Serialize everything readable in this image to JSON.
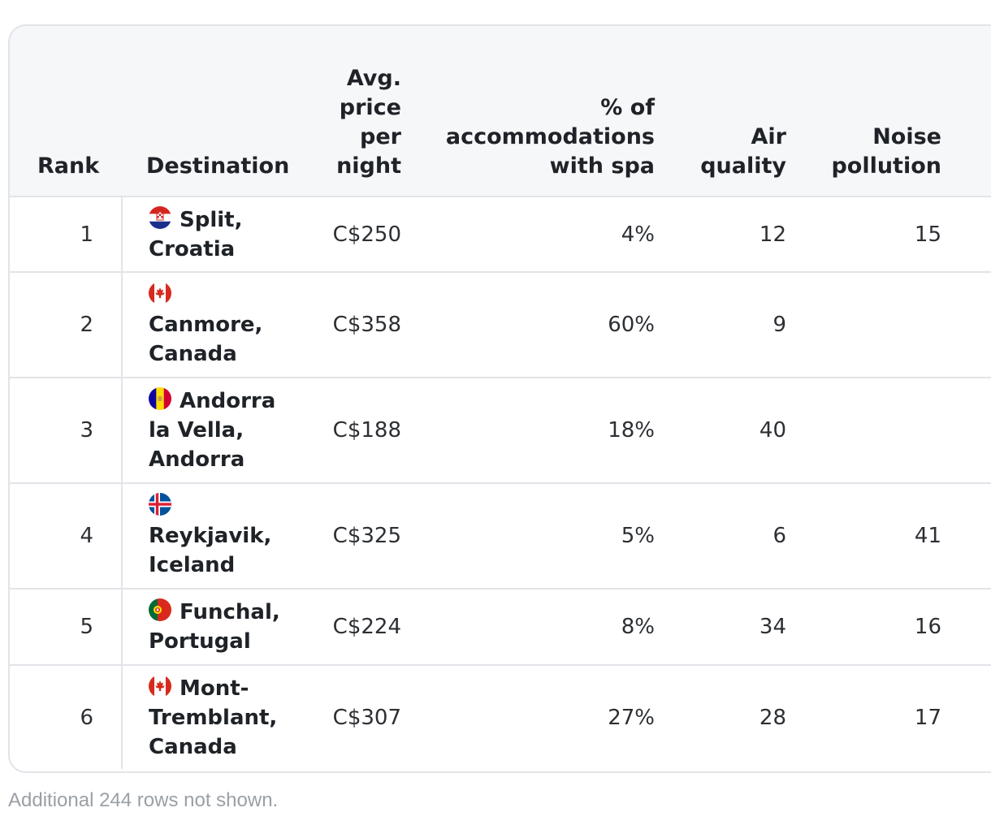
{
  "table": {
    "headers": {
      "rank": "Rank",
      "destination": "Destination",
      "price": [
        "Avg.",
        "price",
        "per",
        "night"
      ],
      "spa": [
        "% of",
        "accommodations",
        "with spa"
      ],
      "air": [
        "Air",
        "quality"
      ],
      "noise": [
        "Noise",
        "pollution"
      ]
    },
    "rows": [
      {
        "rank": "1",
        "flag": "croatia-flag-icon",
        "name": [
          "Split,",
          "Croatia"
        ],
        "price": "C$250",
        "spa": "4%",
        "air": "12",
        "noise": "15"
      },
      {
        "rank": "2",
        "flag": "canada-flag-icon",
        "name": [
          "",
          "Canmore,",
          "Canada"
        ],
        "price": "C$358",
        "spa": "60%",
        "air": "9",
        "noise": ""
      },
      {
        "rank": "3",
        "flag": "andorra-flag-icon",
        "name": [
          "Andorra",
          "la Vella,",
          "Andorra"
        ],
        "price": "C$188",
        "spa": "18%",
        "air": "40",
        "noise": ""
      },
      {
        "rank": "4",
        "flag": "iceland-flag-icon",
        "name": [
          "",
          "Reykjavik,",
          "Iceland"
        ],
        "price": "C$325",
        "spa": "5%",
        "air": "6",
        "noise": "41"
      },
      {
        "rank": "5",
        "flag": "portugal-flag-icon",
        "name": [
          "Funchal,",
          "Portugal"
        ],
        "price": "C$224",
        "spa": "8%",
        "air": "34",
        "noise": "16"
      },
      {
        "rank": "6",
        "flag": "canada-flag-icon",
        "name": [
          "Mont-",
          "Tremblant,",
          "Canada"
        ],
        "price": "C$307",
        "spa": "27%",
        "air": "28",
        "noise": "17"
      }
    ]
  },
  "footnote": "Additional 244 rows not shown."
}
